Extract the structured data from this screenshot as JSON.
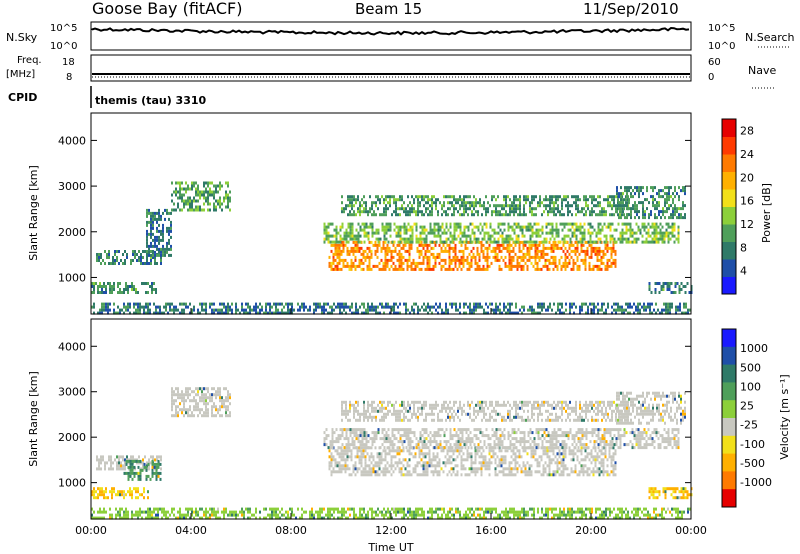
{
  "header": {
    "station": "Goose Bay (fitACF)",
    "beam": "Beam 15",
    "date": "11/Sep/2010"
  },
  "strip_labels": {
    "nsky": "N.Sky",
    "nsearch": "N.Search",
    "freq": "Freq.",
    "freq_unit": "[MHz]",
    "nave": "Nave",
    "cpid": "CPID",
    "cpid_value": "themis (tau) 3310",
    "noise_ticks": [
      "10^5",
      "10^0"
    ],
    "freq_ticks": [
      "18",
      "8"
    ],
    "nave_ticks": [
      "60",
      "0"
    ]
  },
  "chart_data": [
    {
      "type": "heatmap",
      "panel": "power",
      "ylabel": "Slant Range [km]",
      "xlabel": "",
      "x_ticks": [
        "00:00",
        "04:00",
        "08:00",
        "12:00",
        "16:00",
        "20:00",
        "00:00"
      ],
      "y_ticks": [
        1000,
        2000,
        3000,
        4000
      ],
      "ylim": [
        200,
        4600
      ],
      "colorbar": {
        "label": "Power [dB]",
        "ticks": [
          "4",
          "8",
          "12",
          "16",
          "20",
          "24",
          "28"
        ],
        "colors": [
          "#1a1aff",
          "#1f4fa8",
          "#2f7a68",
          "#4f9f5a",
          "#8ccf3a",
          "#f2e01a",
          "#ffb000",
          "#ff7a00",
          "#ff3a00",
          "#e60000"
        ]
      },
      "echo_regions": [
        {
          "t": [
            0.2,
            2.8
          ],
          "range": [
            1300,
            1600
          ],
          "level": 8
        },
        {
          "t": [
            0.0,
            2.6
          ],
          "range": [
            700,
            900
          ],
          "level": 8
        },
        {
          "t": [
            2.2,
            3.2
          ],
          "range": [
            1500,
            2500
          ],
          "level": 6
        },
        {
          "t": [
            3.2,
            5.6
          ],
          "range": [
            2500,
            3100
          ],
          "level": 10
        },
        {
          "t": [
            9.5,
            21.0
          ],
          "range": [
            1200,
            1800
          ],
          "level": 22
        },
        {
          "t": [
            9.3,
            23.5
          ],
          "range": [
            1800,
            2200
          ],
          "level": 12
        },
        {
          "t": [
            10.0,
            21.5
          ],
          "range": [
            2400,
            2800
          ],
          "level": 9
        },
        {
          "t": [
            21.0,
            23.8
          ],
          "range": [
            2300,
            3000
          ],
          "level": 8
        },
        {
          "t": [
            22.3,
            24.0
          ],
          "range": [
            700,
            900
          ],
          "level": 8
        },
        {
          "t": [
            0.0,
            24.0
          ],
          "range": [
            200,
            450
          ],
          "level": 6
        }
      ]
    },
    {
      "type": "heatmap",
      "panel": "velocity",
      "ylabel": "Slant Range [km]",
      "xlabel": "Time UT",
      "x_ticks": [
        "00:00",
        "04:00",
        "08:00",
        "12:00",
        "16:00",
        "20:00",
        "00:00"
      ],
      "y_ticks": [
        1000,
        2000,
        3000,
        4000
      ],
      "ylim": [
        200,
        4600
      ],
      "colorbar": {
        "label": "Velocity [m s⁻¹]",
        "ticks": [
          "1000",
          "500",
          "100",
          "25",
          "-25",
          "-100",
          "-500",
          "-1000"
        ],
        "colors": [
          "#1a1aff",
          "#1f4fa8",
          "#2f7a68",
          "#4f9f5a",
          "#8ccf3a",
          "#c8c8c0",
          "#f2e01a",
          "#ffb000",
          "#ff7a00",
          "#e60000"
        ]
      },
      "echo_regions": [
        {
          "t": [
            0.2,
            2.8
          ],
          "range": [
            1300,
            1600
          ],
          "velocity": 0
        },
        {
          "t": [
            0.0,
            2.3
          ],
          "range": [
            700,
            900
          ],
          "velocity": -100
        },
        {
          "t": [
            1.3,
            2.8
          ],
          "range": [
            1100,
            1500
          ],
          "velocity": 100
        },
        {
          "t": [
            3.2,
            5.6
          ],
          "range": [
            2500,
            3100
          ],
          "velocity": 0
        },
        {
          "t": [
            9.5,
            21.0
          ],
          "range": [
            1200,
            1800
          ],
          "velocity": 0
        },
        {
          "t": [
            9.3,
            23.5
          ],
          "range": [
            1800,
            2200
          ],
          "velocity": 0
        },
        {
          "t": [
            10.0,
            21.5
          ],
          "range": [
            2400,
            2800
          ],
          "velocity": 0
        },
        {
          "t": [
            21.0,
            23.8
          ],
          "range": [
            2300,
            3000
          ],
          "velocity": 0
        },
        {
          "t": [
            22.3,
            24.0
          ],
          "range": [
            700,
            900
          ],
          "velocity": -100
        },
        {
          "t": [
            0.0,
            24.0
          ],
          "range": [
            200,
            450
          ],
          "velocity": 50
        }
      ]
    }
  ]
}
